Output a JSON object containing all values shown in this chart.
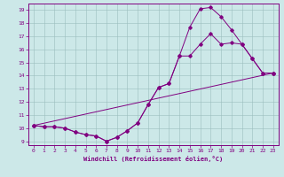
{
  "xlabel": "Windchill (Refroidissement éolien,°C)",
  "background_color": "#cce8e8",
  "line_color": "#800080",
  "xlim": [
    -0.5,
    23.5
  ],
  "ylim": [
    8.7,
    19.5
  ],
  "xticks": [
    0,
    1,
    2,
    3,
    4,
    5,
    6,
    7,
    8,
    9,
    10,
    11,
    12,
    13,
    14,
    15,
    16,
    17,
    18,
    19,
    20,
    21,
    22,
    23
  ],
  "yticks": [
    9,
    10,
    11,
    12,
    13,
    14,
    15,
    16,
    17,
    18,
    19
  ],
  "line1_x": [
    0,
    1,
    2,
    3,
    4,
    5,
    6,
    7,
    8,
    9,
    10,
    11,
    12,
    13,
    14,
    15,
    16,
    17,
    18,
    19,
    20,
    21,
    22,
    23
  ],
  "line1_y": [
    10.2,
    10.1,
    10.1,
    10.0,
    9.7,
    9.5,
    9.4,
    9.0,
    9.3,
    9.8,
    10.4,
    11.8,
    13.1,
    13.4,
    15.5,
    17.7,
    19.1,
    19.2,
    18.5,
    17.5,
    16.4,
    15.3,
    14.2,
    14.2
  ],
  "line2_x": [
    0,
    1,
    2,
    3,
    4,
    5,
    6,
    7,
    8,
    9,
    10,
    11,
    12,
    13,
    14,
    15,
    16,
    17,
    18,
    19,
    20,
    21,
    22,
    23
  ],
  "line2_y": [
    10.2,
    10.1,
    10.1,
    10.0,
    9.7,
    9.5,
    9.4,
    9.0,
    9.3,
    9.8,
    10.4,
    11.8,
    13.1,
    13.4,
    15.5,
    15.5,
    16.4,
    17.2,
    16.4,
    16.5,
    16.4,
    15.3,
    14.2,
    14.2
  ],
  "line3_x": [
    0,
    23
  ],
  "line3_y": [
    10.2,
    14.2
  ]
}
